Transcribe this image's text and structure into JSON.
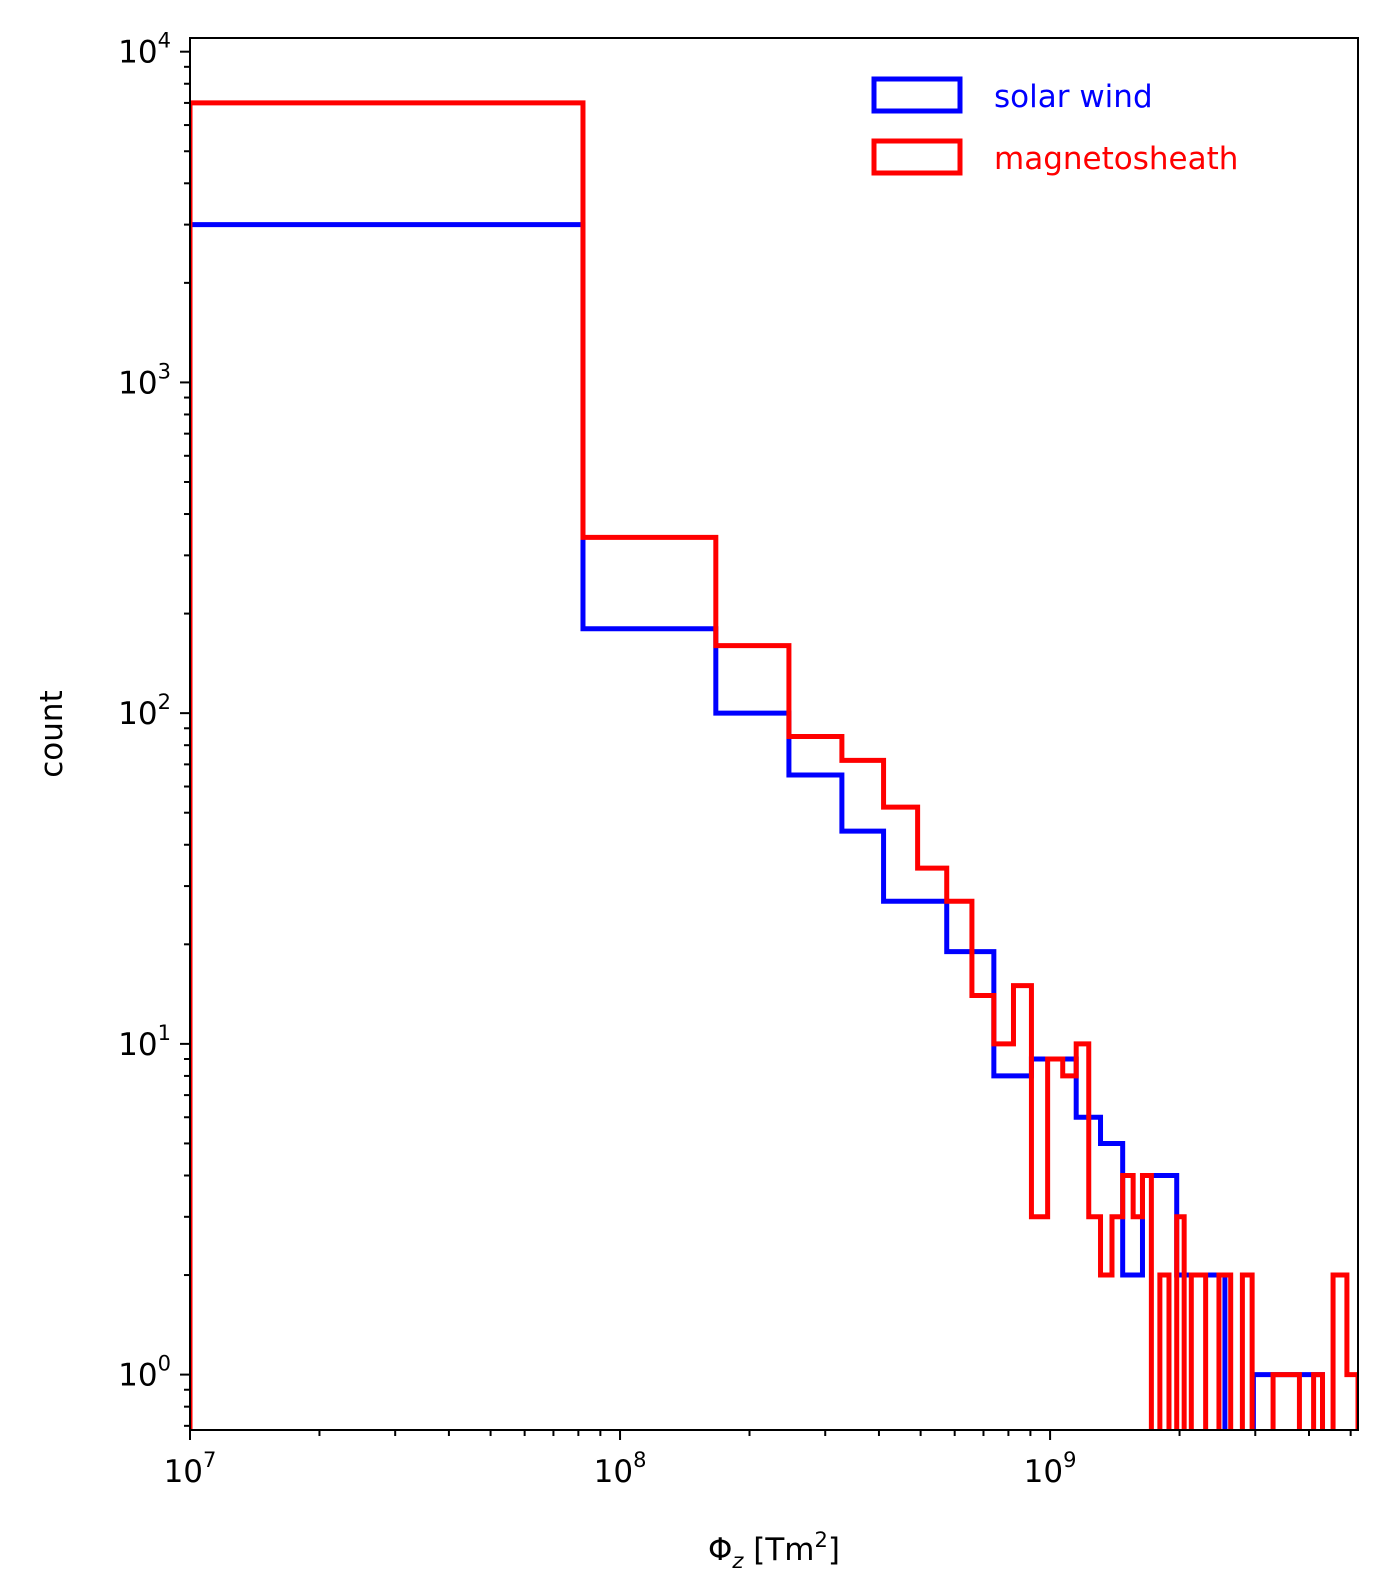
{
  "chart_data": {
    "type": "histogram",
    "title": "",
    "xlabel": {
      "symbol": "Φ",
      "subscript": "z",
      "unit_open": " [Tm",
      "unit_exp": "2",
      "unit_close": "]"
    },
    "ylabel": "count",
    "xscale": "log",
    "yscale": "log",
    "xlim": [
      10000000,
      5200000000
    ],
    "ylim": [
      0.68,
      11000
    ],
    "x_ticks": [
      {
        "value": 10000000,
        "base": "10",
        "exp": "7"
      },
      {
        "value": 100000000,
        "base": "10",
        "exp": "8"
      },
      {
        "value": 1000000000,
        "base": "10",
        "exp": "9"
      }
    ],
    "y_ticks": [
      {
        "value": 1,
        "base": "10",
        "exp": "0"
      },
      {
        "value": 10,
        "base": "10",
        "exp": "1"
      },
      {
        "value": 100,
        "base": "10",
        "exp": "2"
      },
      {
        "value": 1000,
        "base": "10",
        "exp": "3"
      },
      {
        "value": 10000,
        "base": "10",
        "exp": "4"
      }
    ],
    "legend_position": "top-right",
    "grid": false,
    "series": [
      {
        "name": "solar wind",
        "color": "#0000ff",
        "bin_edges": [
          10000000,
          82000000,
          167000000,
          247000000,
          328000000,
          410000000,
          575000000,
          740000000,
          905000000,
          1150000000,
          1310000000,
          1475000000,
          1640000000,
          1970000000,
          2550000000,
          2970000000,
          3550000000,
          4300000000,
          5200000000
        ],
        "counts": [
          3000,
          180,
          100,
          65,
          44,
          27,
          19,
          8,
          9,
          6,
          5,
          2,
          4,
          2,
          0.5,
          1,
          1,
          0.5
        ]
      },
      {
        "name": "magnetosheath",
        "color": "#ff0000",
        "bin_edges": [
          10000000,
          82000000,
          167000000,
          247000000,
          328000000,
          410000000,
          492000000,
          575000000,
          658000000,
          740000000,
          822000000,
          905000000,
          987000000,
          1070000000,
          1150000000,
          1230000000,
          1310000000,
          1393000000,
          1475000000,
          1560000000,
          1640000000,
          1720000000,
          1800000000,
          1890000000,
          1970000000,
          2050000000,
          2130000000,
          2300000000,
          2470000000,
          2630000000,
          2800000000,
          2950000000,
          3050000000,
          3300000000,
          3550000000,
          3800000000,
          4100000000,
          4300000000,
          4550000000,
          4900000000,
          5200000000
        ],
        "counts": [
          7000,
          340,
          160,
          85,
          72,
          52,
          34,
          27,
          14,
          10,
          15,
          3,
          9,
          8,
          10,
          3,
          2,
          3,
          4,
          3,
          4,
          0.5,
          2,
          0.5,
          3,
          0.5,
          2,
          0.5,
          2,
          0.5,
          2,
          0.5,
          0.5,
          1,
          1,
          0.5,
          1,
          0.5,
          2,
          1
        ]
      }
    ]
  }
}
